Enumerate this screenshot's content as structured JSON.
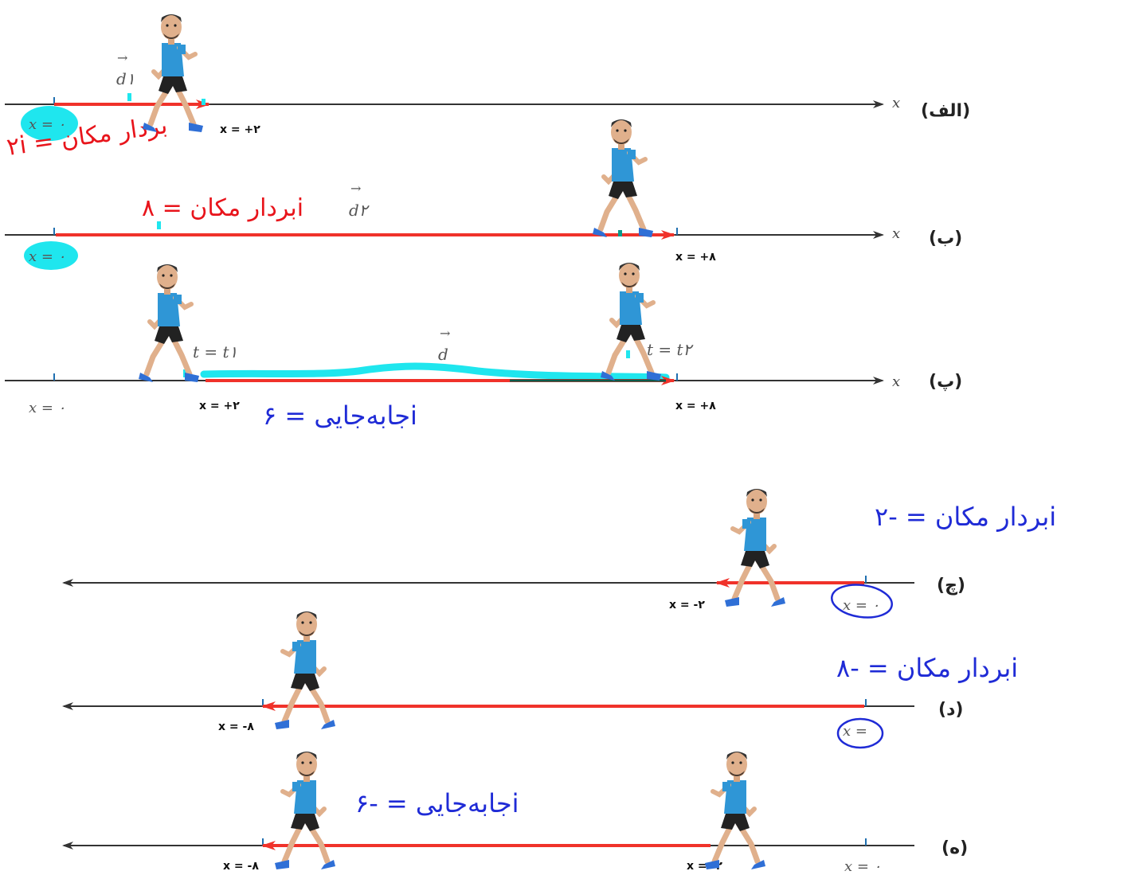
{
  "panels": {
    "alef": {
      "label": "(الف)",
      "axis": "x",
      "origin": "x = ۰",
      "pos": "x = +۲",
      "vector": "d۱",
      "note": "۲i = بردار مکان"
    },
    "be": {
      "label": "(ب)",
      "axis": "x",
      "origin": "x = ۰",
      "pos": "x = +۸",
      "vector": "d۲",
      "note": "بردار مکان = ۸i"
    },
    "pe": {
      "label": "(پ)",
      "axis": "x",
      "origin": "x = ۰",
      "pos1": "x = +۲",
      "pos2": "x = +۸",
      "vector": "d",
      "t1": "t = t۱",
      "t2": "t = t۲",
      "note": "جابه‌جایی = ۶i"
    },
    "che": {
      "label": "(چ)",
      "origin": "x = ۰",
      "pos": "x = -۲",
      "note": "بردار مکان = -۲i"
    },
    "dal": {
      "label": "(د)",
      "origin": "x =",
      "pos": "x = -۸",
      "note": "بردار مکان = -۸i"
    },
    "he": {
      "label": "(ه)",
      "origin": "x = ۰",
      "pos1": "x = -۸",
      "pos2": "x = -۲",
      "note": "جابه‌جایی = -۶i"
    }
  },
  "colors": {
    "axis": "#333333",
    "vector": "#f0322a",
    "highlight": "#1fe6ee",
    "ink_red": "#e8141b",
    "ink_blue": "#1f2bd6",
    "shirt": "#2f96d6",
    "shorts": "#222222",
    "skin": "#e0b08c",
    "shoe": "#2f6fd6"
  }
}
